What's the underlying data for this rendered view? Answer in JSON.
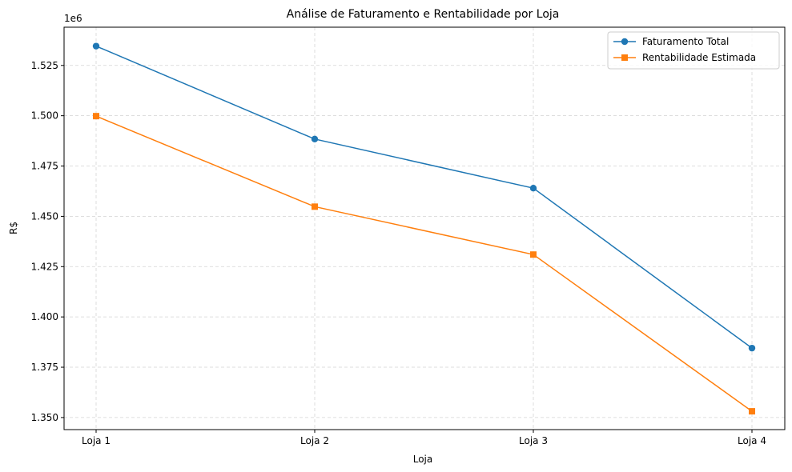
{
  "chart_data": {
    "type": "line",
    "title": "Análise de Faturamento e Rentabilidade por Loja",
    "xlabel": "Loja",
    "ylabel": "R$",
    "y_offset_text": "1e6",
    "categories": [
      "Loja 1",
      "Loja 2",
      "Loja 3",
      "Loja 4"
    ],
    "ylim": [
      1.344,
      1.544
    ],
    "yticks": [
      1.35,
      1.375,
      1.4,
      1.425,
      1.45,
      1.475,
      1.5,
      1.525
    ],
    "ytick_labels": [
      "1.350",
      "1.375",
      "1.400",
      "1.425",
      "1.450",
      "1.475",
      "1.500",
      "1.525"
    ],
    "grid": true,
    "legend_position": "top-right",
    "series": [
      {
        "name": "Faturamento Total",
        "values": [
          1.5346,
          1.4884,
          1.464,
          1.3845
        ],
        "color": "#1f77b4",
        "marker": "circle"
      },
      {
        "name": "Rentabilidade Estimada",
        "values": [
          1.4998,
          1.4548,
          1.431,
          1.3531
        ],
        "color": "#ff7f0e",
        "marker": "square"
      }
    ]
  }
}
